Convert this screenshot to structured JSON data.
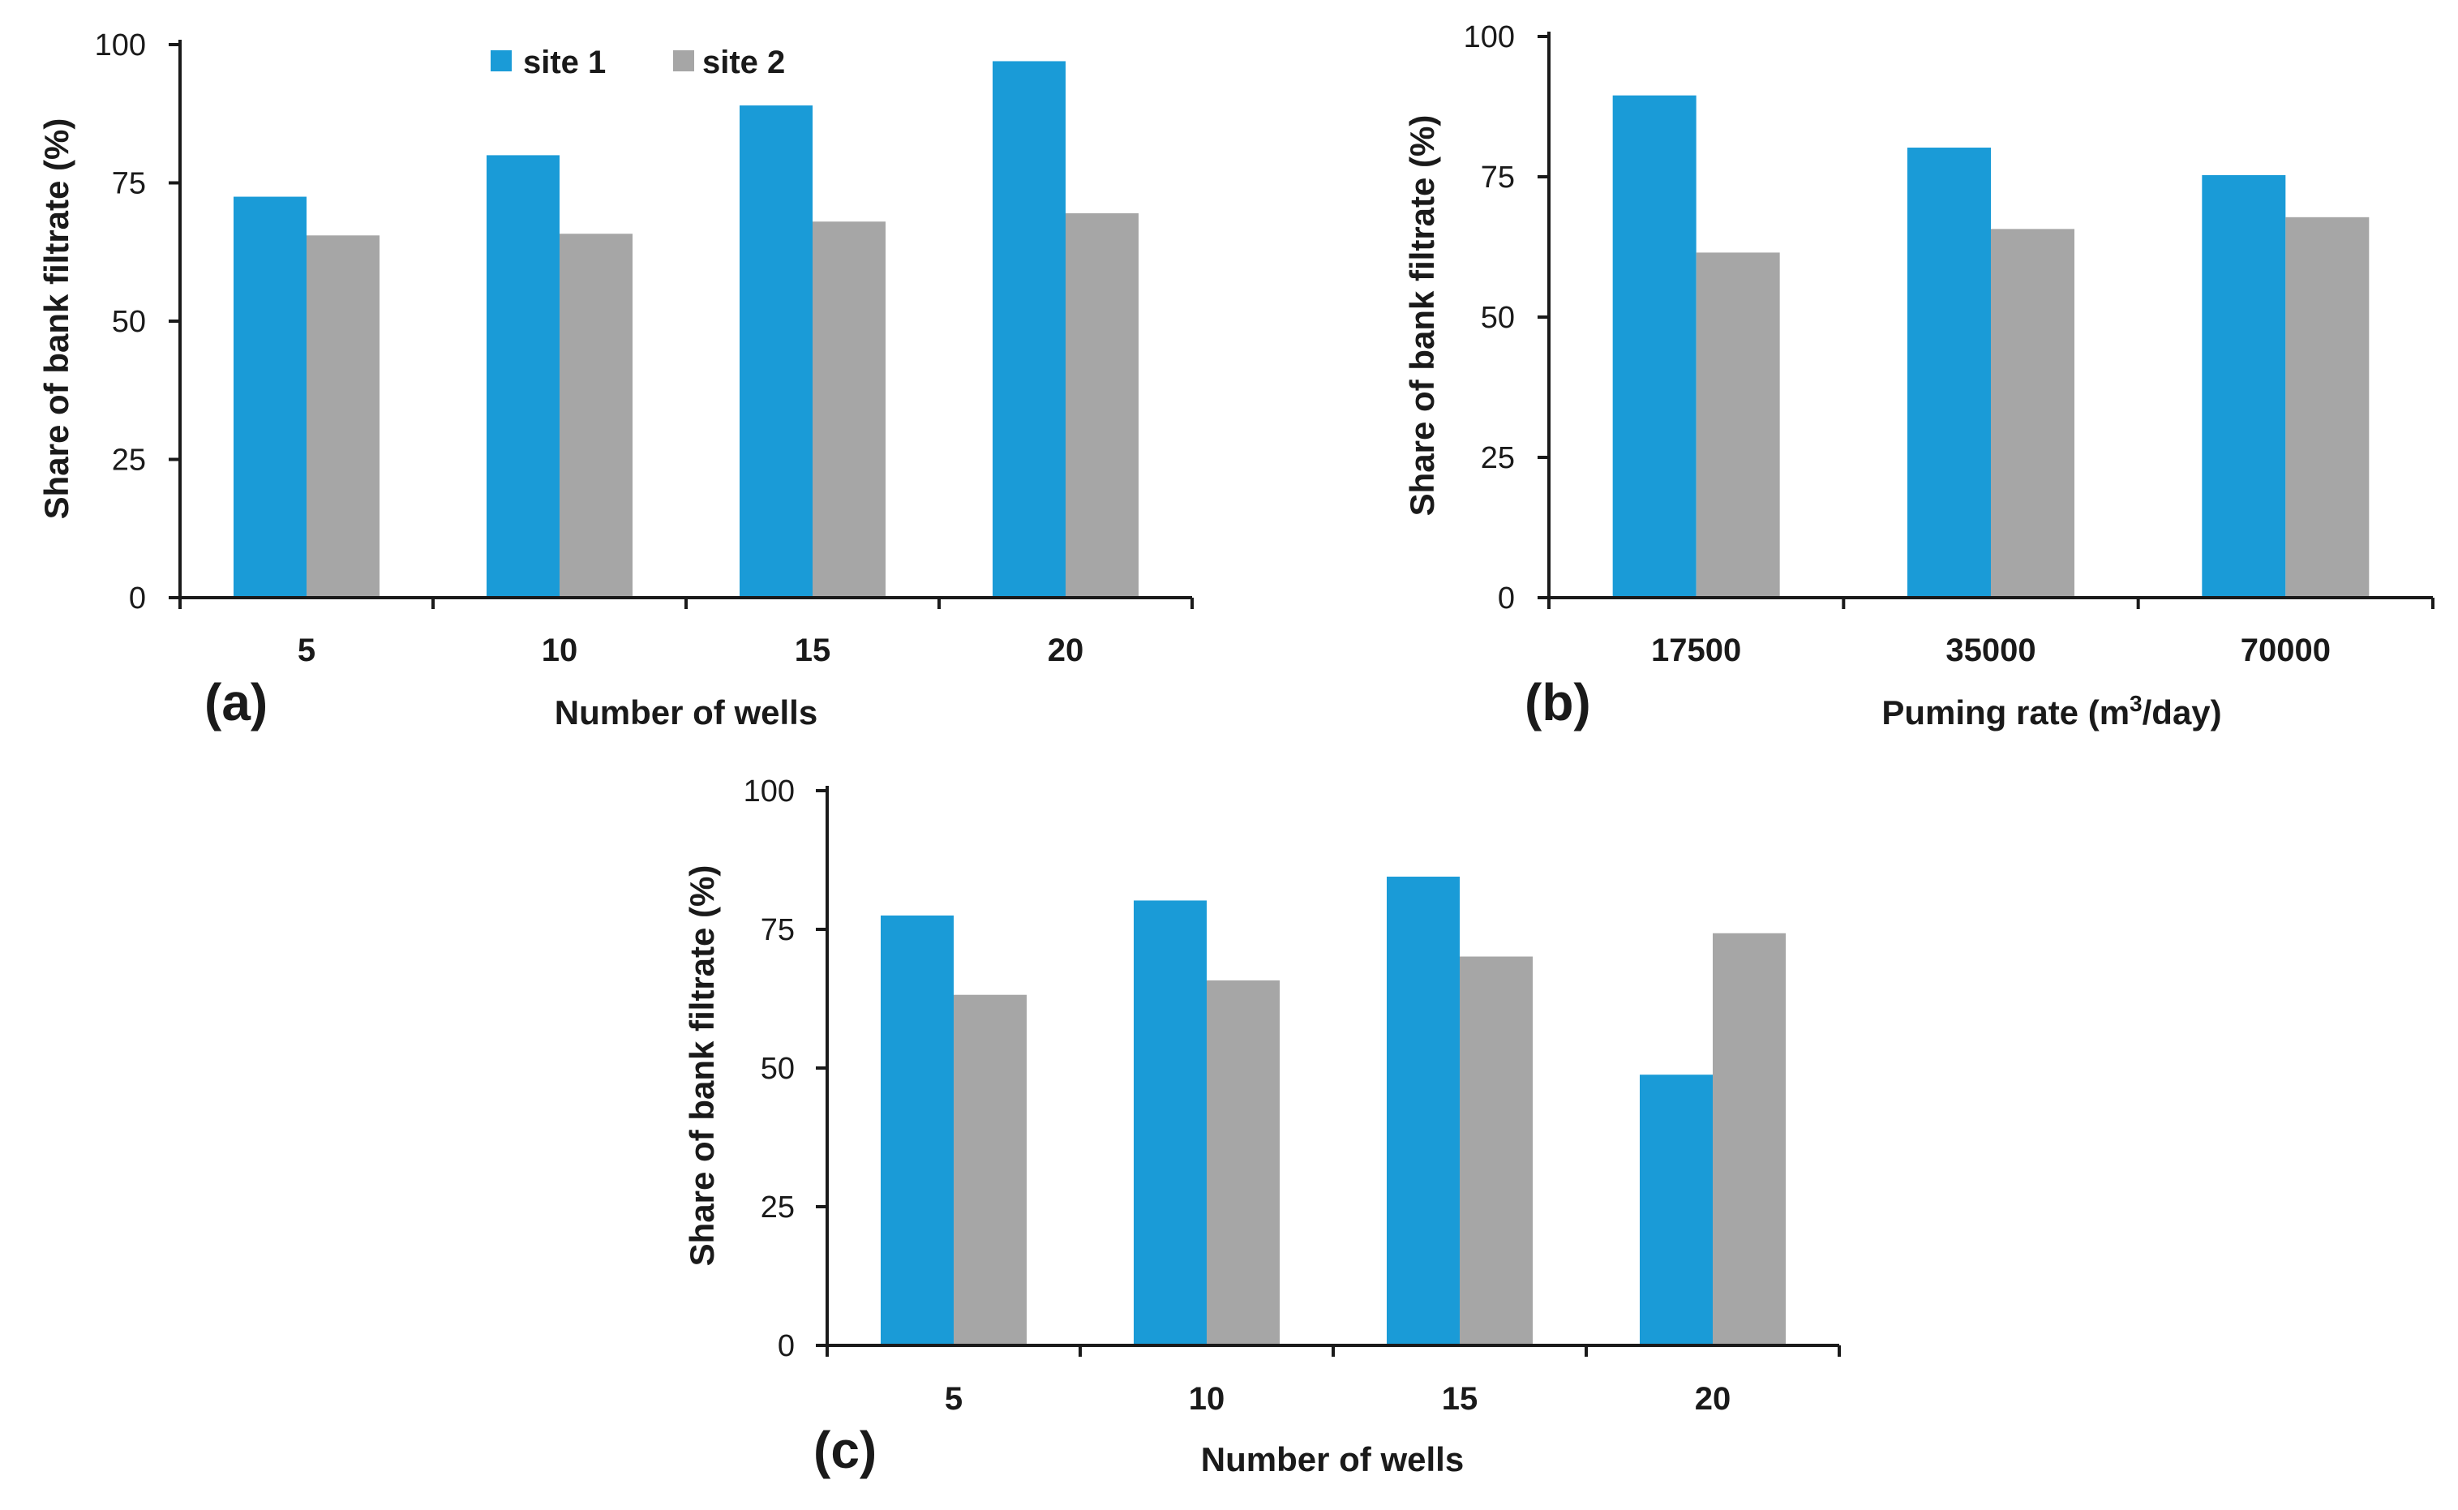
{
  "colors": {
    "site1": "#1a9bd7",
    "site2": "#a6a6a6",
    "axis": "#1a1a1a"
  },
  "legend": {
    "site1": "site 1",
    "site2": "site 2"
  },
  "chart_data": [
    {
      "type": "bar",
      "panel": "(a)",
      "title": "",
      "xlabel": "Number of wells",
      "ylabel": "Share of bank filtrate (%)",
      "ylim": [
        0,
        100
      ],
      "yticks": [
        0,
        25,
        50,
        75,
        100
      ],
      "categories": [
        "5",
        "10",
        "15",
        "20"
      ],
      "series": [
        {
          "name": "site 1",
          "values": [
            72.5,
            80,
            89,
            97
          ]
        },
        {
          "name": "site 2",
          "values": [
            65.5,
            65.8,
            68,
            69.5
          ]
        }
      ],
      "legend_position": "top"
    },
    {
      "type": "bar",
      "panel": "(b)",
      "title": "",
      "xlabel_prefix": "Puming rate (m",
      "xlabel_sup": "3",
      "xlabel_suffix": "/day)",
      "ylabel": "Share of bank filtrate (%)",
      "ylim": [
        0,
        100
      ],
      "yticks": [
        0,
        25,
        50,
        75,
        100
      ],
      "categories": [
        "17500",
        "35000",
        "70000"
      ],
      "series": [
        {
          "name": "site 1",
          "values": [
            89.5,
            80.2,
            75.3
          ]
        },
        {
          "name": "site 2",
          "values": [
            61.5,
            65.7,
            67.8
          ]
        }
      ]
    },
    {
      "type": "bar",
      "panel": "(c)",
      "title": "",
      "xlabel": "Number of wells",
      "ylabel": "Share of bank filtrate (%)",
      "ylim": [
        0,
        100
      ],
      "yticks": [
        0,
        25,
        50,
        75,
        100
      ],
      "categories": [
        "5",
        "10",
        "15",
        "20"
      ],
      "series": [
        {
          "name": "site 1",
          "values": [
            77.5,
            80.2,
            84.5,
            48.8
          ]
        },
        {
          "name": "site 2",
          "values": [
            63.2,
            65.8,
            70.1,
            74.3
          ]
        }
      ]
    }
  ]
}
